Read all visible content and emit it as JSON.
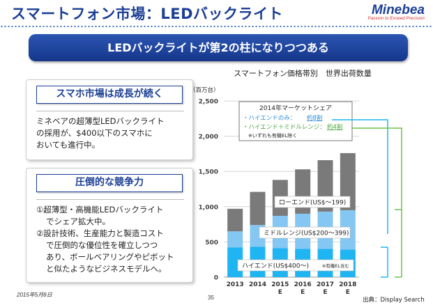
{
  "header": {
    "title": "スマートフォン市場：LEDバックライト",
    "logo_name": "Minebea",
    "logo_tagline": "Passion to Exceed Precision"
  },
  "banner": {
    "text": "LEDバックライトが第2の柱になりつつある"
  },
  "panel1": {
    "heading": "スマホ市場は成長が続く",
    "lines": [
      "ミネベアの超薄型LEDバックライト",
      "の採用が、$400以下のスマホに",
      "おいても進行中。"
    ]
  },
  "panel2": {
    "heading": "圧倒的な競争力",
    "lines": [
      "①超薄型・高機能LEDバックライト",
      "でシェア拡大中。",
      "②設計技術、生産能力と製造コスト",
      "で圧倒的な優位性を確立しつつ",
      "あり、ボールベアリングやピボット",
      "と似たようなビジネスモデルへ。"
    ]
  },
  "footer": {
    "date": "2015年5月8日",
    "page": "35",
    "source": "出典：Display Search"
  },
  "colors": {
    "high": "#1fb4f2",
    "mid": "#84c7f2",
    "low": "#7a7a7a",
    "brand": "#1c3f95",
    "bracket_blue": "#1fb4f2",
    "bracket_green": "#6cc04a"
  },
  "chart_data": {
    "type": "bar",
    "stacked": true,
    "title": "スマートフォン価格帯別　世界出荷数量",
    "yunit": "（百万台）",
    "categories": [
      "2013",
      "2014",
      "2015",
      "2016",
      "2017",
      "2018"
    ],
    "category_sub": [
      "",
      "",
      "E",
      "E",
      "E",
      "E"
    ],
    "ylim": [
      0,
      2500
    ],
    "yticks": [
      0,
      500,
      1000,
      1500,
      2000,
      2500
    ],
    "ytick_labels": [
      "0",
      "500",
      "1,000",
      "1,500",
      "2,000",
      "2,500"
    ],
    "grid": true,
    "series": [
      {
        "name": "ハイエンド(US$400～)",
        "values": [
          420,
          430,
          410,
          400,
          400,
          390
        ]
      },
      {
        "name": "ミドルレンジ(US$200～399)",
        "values": [
          230,
          310,
          460,
          500,
          530,
          560
        ]
      },
      {
        "name": "ローエンド(US$～199)",
        "values": [
          320,
          470,
          510,
          630,
          730,
          810
        ]
      }
    ],
    "series_note": "※有機EL含む",
    "legend_box": {
      "title": "2014年マーケットシェア",
      "line1_label": "・ハイエンドのみ：",
      "line1_value": "約8割",
      "line2_label": "・ハイエンド＋ミドルレンジ：",
      "line2_value": "約4割",
      "note": "※いずれも有機EL除く"
    }
  }
}
